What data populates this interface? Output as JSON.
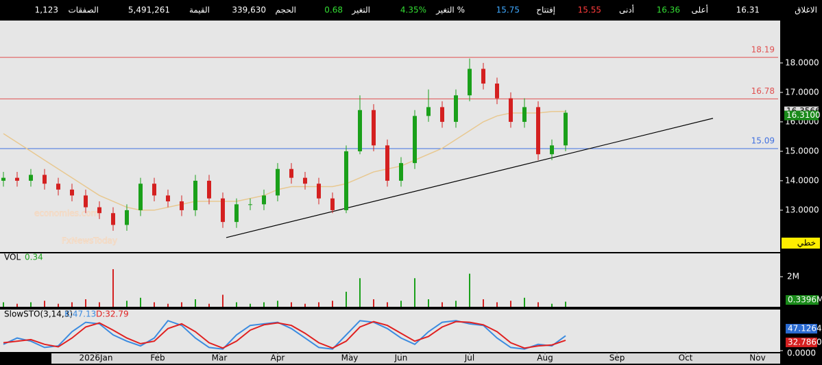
{
  "header": {
    "items": [
      {
        "label": "الاغلاق",
        "value": "16.31",
        "color": "#ffffff"
      },
      {
        "label": "أعلى",
        "value": "16.36",
        "color": "#33dd33"
      },
      {
        "label": "أدنى",
        "value": "15.55",
        "color": "#ff3b3b"
      },
      {
        "label": "إفتتاح",
        "value": "15.75",
        "color": "#3fa9ff"
      },
      {
        "label": "التغير %",
        "value": "4.35%",
        "color": "#33dd33"
      },
      {
        "label": "التغير",
        "value": "0.68",
        "color": "#33dd33"
      },
      {
        "label": "الحجم",
        "value": "339,630",
        "color": "#ffffff"
      },
      {
        "label": "القيمة",
        "value": "5,491,261",
        "color": "#ffffff"
      },
      {
        "label": "الصفقات",
        "value": "1,123",
        "color": "#ffffff"
      }
    ]
  },
  "chart_data": [
    {
      "type": "candlestick",
      "x": [
        0,
        4,
        8,
        12,
        16,
        20,
        24,
        28,
        32,
        36,
        40,
        44,
        48,
        52,
        56,
        60,
        64,
        68,
        72,
        76,
        80,
        84,
        88,
        92,
        96,
        100,
        104,
        108,
        112,
        116,
        120,
        124,
        128,
        132,
        136,
        140,
        144,
        148,
        152,
        156,
        160,
        164
      ],
      "open": [
        14.0,
        14.1,
        14.0,
        14.2,
        13.9,
        13.7,
        13.5,
        13.1,
        12.9,
        12.5,
        13.0,
        13.9,
        13.5,
        13.3,
        13.0,
        14.0,
        13.4,
        12.6,
        13.2,
        13.2,
        13.5,
        14.4,
        14.1,
        13.9,
        13.4,
        13.0,
        15.0,
        16.4,
        15.2,
        14.0,
        14.6,
        16.2,
        16.5,
        16.0,
        16.9,
        17.8,
        17.3,
        16.8,
        16.0,
        16.5,
        14.9,
        15.2
      ],
      "high": [
        14.3,
        14.3,
        14.4,
        14.4,
        14.1,
        13.9,
        13.7,
        13.3,
        13.1,
        13.2,
        14.1,
        14.1,
        13.7,
        13.5,
        14.2,
        14.2,
        13.6,
        13.4,
        13.4,
        13.7,
        14.6,
        14.6,
        14.3,
        14.1,
        13.6,
        15.2,
        16.9,
        16.6,
        15.4,
        14.8,
        16.4,
        17.1,
        16.7,
        17.1,
        18.15,
        18.0,
        17.5,
        17.0,
        16.8,
        16.7,
        15.4,
        16.4
      ],
      "low": [
        13.8,
        13.8,
        13.8,
        13.7,
        13.5,
        13.3,
        12.9,
        12.7,
        12.3,
        12.3,
        12.8,
        13.3,
        13.1,
        12.8,
        12.8,
        13.2,
        12.4,
        12.4,
        13.0,
        13.0,
        13.3,
        13.9,
        13.7,
        13.2,
        12.9,
        12.9,
        14.9,
        15.0,
        13.8,
        13.8,
        14.4,
        16.0,
        15.8,
        15.8,
        16.7,
        17.1,
        16.6,
        15.8,
        15.8,
        14.7,
        14.7,
        15.0
      ],
      "close": [
        14.1,
        14.0,
        14.2,
        13.9,
        13.7,
        13.5,
        13.1,
        12.9,
        12.5,
        13.0,
        13.9,
        13.5,
        13.3,
        13.0,
        14.0,
        13.4,
        12.6,
        13.2,
        13.2,
        13.5,
        14.4,
        14.1,
        13.9,
        13.4,
        13.0,
        15.0,
        16.4,
        15.2,
        14.0,
        14.6,
        16.2,
        16.5,
        16.0,
        16.9,
        17.8,
        17.3,
        16.8,
        16.0,
        16.5,
        14.9,
        15.2,
        16.31
      ],
      "last_close_label": "16.3100",
      "up_color": "#1aa01a",
      "down_color": "#d42020",
      "ma": {
        "color": "#e8c890",
        "values": [
          15.6,
          15.3,
          15.0,
          14.7,
          14.4,
          14.1,
          13.8,
          13.5,
          13.3,
          13.1,
          13.0,
          13.0,
          13.1,
          13.2,
          13.3,
          13.3,
          13.3,
          13.3,
          13.4,
          13.5,
          13.7,
          13.8,
          13.8,
          13.8,
          13.8,
          13.9,
          14.1,
          14.3,
          14.4,
          14.5,
          14.7,
          14.9,
          15.1,
          15.4,
          15.7,
          16.0,
          16.2,
          16.3,
          16.3,
          16.3,
          16.35,
          16.3566
        ],
        "last_label": "16.3566"
      },
      "levels": [
        {
          "value": 18.19,
          "color": "#e05050"
        },
        {
          "value": 16.78,
          "color": "#e05050"
        },
        {
          "value": 15.09,
          "color": "#4070e0"
        }
      ],
      "trendline": {
        "x": [
          65,
          207
        ],
        "y": [
          12.07,
          16.12
        ]
      },
      "tag": "خطي",
      "watermark": [
        "economies.com",
        "FxNewsToday"
      ],
      "xlim": [
        -1,
        226
      ],
      "xticks": [
        {
          "value": 27,
          "label": "2026Jan"
        },
        {
          "value": 45,
          "label": "Feb"
        },
        {
          "value": 63,
          "label": "Mar"
        },
        {
          "value": 80,
          "label": "Apr"
        },
        {
          "value": 101,
          "label": "May"
        },
        {
          "value": 116,
          "label": "Jun"
        },
        {
          "value": 136,
          "label": "Jul"
        },
        {
          "value": 158,
          "label": "Aug"
        },
        {
          "value": 179,
          "label": "Sep"
        },
        {
          "value": 199,
          "label": "Oct"
        },
        {
          "value": 220,
          "label": "Nov"
        }
      ],
      "ylim": [
        11.58,
        19.44
      ],
      "yticks": [
        {
          "value": 13,
          "label": "13.0000"
        },
        {
          "value": 14,
          "label": "14.0000"
        },
        {
          "value": 15,
          "label": "15.0000"
        },
        {
          "value": 16,
          "label": "16.0000"
        },
        {
          "value": 17,
          "label": "17.0000"
        },
        {
          "value": 18,
          "label": "18.0000"
        }
      ]
    },
    {
      "type": "bar",
      "title": "VOL",
      "current": 0.34,
      "values": [
        0.3,
        0.2,
        0.3,
        0.4,
        0.2,
        0.3,
        0.5,
        0.3,
        2.5,
        0.4,
        0.6,
        0.3,
        0.2,
        0.3,
        0.5,
        0.2,
        0.8,
        0.3,
        0.2,
        0.3,
        0.4,
        0.3,
        0.2,
        0.3,
        0.4,
        1.0,
        1.9,
        0.5,
        0.3,
        0.4,
        1.9,
        0.5,
        0.3,
        0.4,
        2.2,
        0.5,
        0.3,
        0.4,
        0.6,
        0.3,
        0.2,
        0.3396
      ],
      "last_label": "0.3396M",
      "ylim": [
        0,
        3.55
      ],
      "yticks": [
        {
          "value": 2,
          "label": "2M"
        }
      ]
    },
    {
      "type": "line",
      "title": "SlowSTO(3,14,3)",
      "series": [
        {
          "name": "K:47.13",
          "color": "#3b8be0",
          "values": [
            20,
            40,
            30,
            10,
            15,
            60,
            90,
            85,
            50,
            30,
            15,
            40,
            95,
            80,
            40,
            10,
            5,
            50,
            80,
            85,
            90,
            70,
            40,
            10,
            5,
            50,
            95,
            90,
            70,
            40,
            20,
            60,
            90,
            95,
            85,
            80,
            40,
            10,
            5,
            20,
            15,
            47.1264
          ],
          "last_label": "47.1264"
        },
        {
          "name": "D:32.79",
          "color": "#e02020",
          "values": [
            25,
            30,
            35,
            20,
            12,
            40,
            75,
            88,
            65,
            40,
            22,
            30,
            70,
            85,
            60,
            25,
            8,
            30,
            65,
            82,
            88,
            80,
            55,
            25,
            8,
            30,
            75,
            92,
            80,
            55,
            30,
            45,
            75,
            92,
            90,
            82,
            60,
            25,
            8,
            15,
            18,
            32.786
          ],
          "last_label": "32.7860"
        }
      ],
      "ylim": [
        0,
        100
      ],
      "yticks": [
        {
          "value": 0,
          "label": "0.0000"
        }
      ]
    }
  ]
}
